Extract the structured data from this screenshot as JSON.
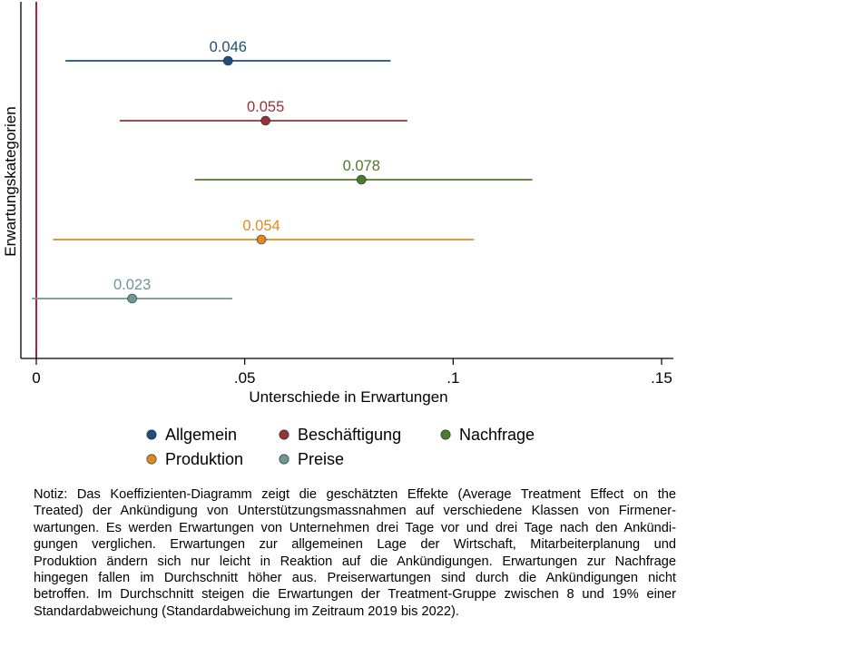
{
  "chart_data": {
    "type": "coefficient_plot",
    "xlabel": "Unterschiede in Erwartungen",
    "ylabel": "Erwartungskategorien",
    "xlim": [
      -0.004,
      0.152
    ],
    "x_ticks": [
      {
        "value": 0,
        "label": "0"
      },
      {
        "value": 0.05,
        "label": ".05"
      },
      {
        "value": 0.1,
        "label": ".1"
      },
      {
        "value": 0.15,
        "label": ".15"
      }
    ],
    "reference_line": 0,
    "series": [
      {
        "name": "Allgemein",
        "estimate": 0.046,
        "ci_low": 0.007,
        "ci_high": 0.085,
        "label": "0.046",
        "color": "#1f4e79"
      },
      {
        "name": "Beschäftigung",
        "estimate": 0.055,
        "ci_low": 0.02,
        "ci_high": 0.089,
        "label": "0.055",
        "color": "#963232"
      },
      {
        "name": "Nachfrage",
        "estimate": 0.078,
        "ci_low": 0.038,
        "ci_high": 0.119,
        "label": "0.078",
        "color": "#4e7a2b"
      },
      {
        "name": "Produktion",
        "estimate": 0.054,
        "ci_low": 0.004,
        "ci_high": 0.105,
        "label": "0.054",
        "color": "#e08a1e"
      },
      {
        "name": "Preise",
        "estimate": 0.023,
        "ci_low": -0.001,
        "ci_high": 0.047,
        "label": "0.023",
        "color": "#6f9690"
      }
    ],
    "reference_line_color": "#b0243a",
    "legend_position": "bottom"
  },
  "note": {
    "lines": [
      "Notiz: Das Koeffizienten-Diagramm zeigt die geschätzten Effekte (Average Treatment Effect on the",
      "Treated) der Ankündigung von Unterstützungsmassnahmen auf verschiedene Klassen von Firmener-",
      "wartungen. Es werden Erwartungen von Unternehmen drei Tage vor und drei Tage nach den Ankündi-",
      "gungen verglichen. Erwartungen zur allgemeinen Lage der Wirtschaft, Mitarbeiterplanung und",
      "Produktion ändern sich nur leicht in Reaktion auf die Ankündigungen. Erwartungen zur Nachfrage",
      "hingegen fallen im Durchschnitt höher aus. Preiserwartungen sind durch die Ankündigungen nicht",
      "betroffen. Im Durchschnitt steigen die Erwartungen der Treatment-Gruppe zwischen 8 und 19% einer",
      "Standardabweichung (Standardabweichung im Zeitraum 2019 bis 2022)."
    ]
  }
}
